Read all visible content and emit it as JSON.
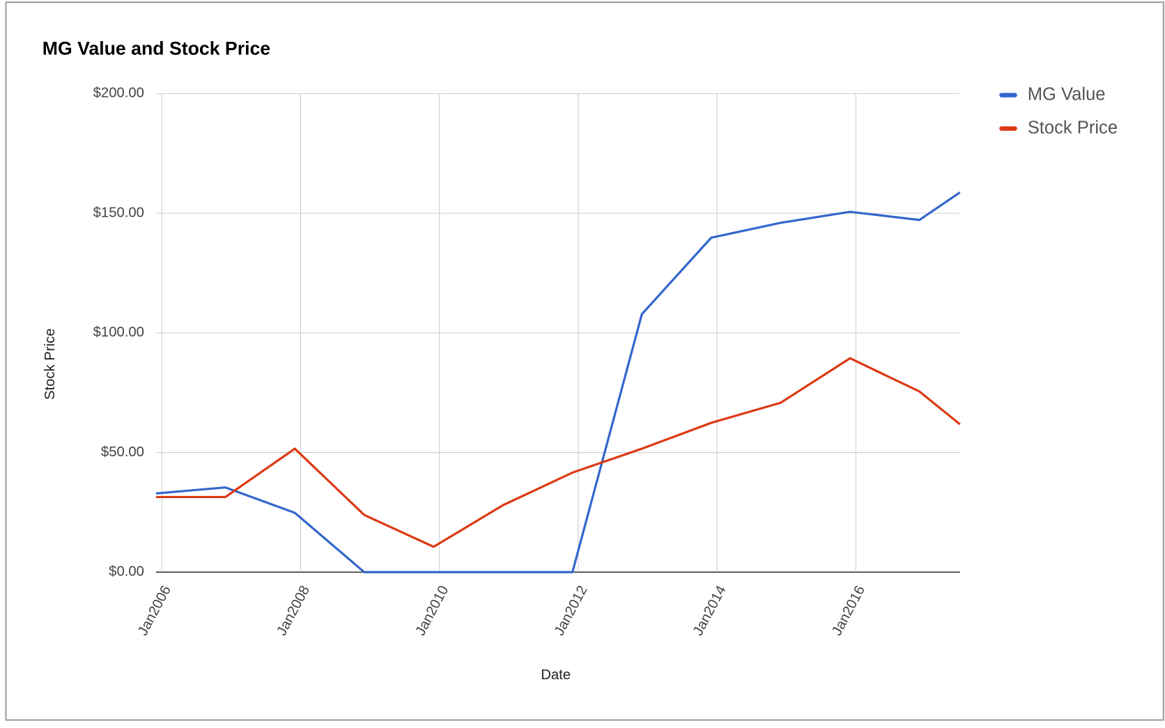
{
  "chart_data": {
    "type": "line",
    "title": "MG Value and Stock Price",
    "x_label": "Date",
    "y_label": "Stock Price",
    "x": [
      "2005-12",
      "2006-12",
      "2007-12",
      "2008-12",
      "2009-12",
      "2010-12",
      "2011-12",
      "2012-12",
      "2013-12",
      "2014-12",
      "2015-12",
      "2016-12",
      "2017-07"
    ],
    "series": [
      {
        "name": "MG Value",
        "color": "#3366cc",
        "values": [
          32.9,
          35.4,
          24.8,
          0,
          0,
          0,
          0,
          107.8,
          139.8,
          146,
          150.6,
          147.2,
          158.7
        ]
      },
      {
        "name": "Stock Price",
        "color": "#dc3912",
        "values": [
          31.4,
          31.4,
          51.6,
          23.9,
          10.6,
          28,
          41.6,
          51.6,
          62.4,
          70.8,
          89.4,
          75.5,
          61.8
        ]
      }
    ],
    "xlim": [
      "2005-12",
      "2017-07"
    ],
    "xticks": [
      {
        "value": "2006-01",
        "label": "Jan2006"
      },
      {
        "value": "2008-01",
        "label": "Jan2008"
      },
      {
        "value": "2010-01",
        "label": "Jan2010"
      },
      {
        "value": "2012-01",
        "label": "Jan2012"
      },
      {
        "value": "2014-01",
        "label": "Jan2014"
      },
      {
        "value": "2016-01",
        "label": "Jan2016"
      }
    ],
    "ylim": [
      0,
      200
    ],
    "yticks": [
      {
        "value": 0,
        "label": "$0.00"
      },
      {
        "value": 50,
        "label": "$50.00"
      },
      {
        "value": 100,
        "label": "$100.00"
      },
      {
        "value": 150,
        "label": "$150.00"
      },
      {
        "value": 200,
        "label": "$200.00"
      }
    ],
    "grid": true,
    "legend": "right"
  }
}
